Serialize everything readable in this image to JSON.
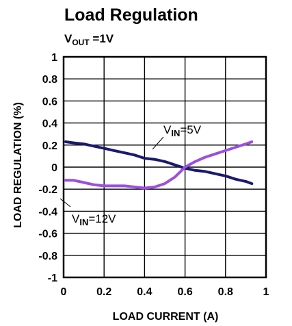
{
  "chart_data": {
    "type": "line",
    "title": "Load Regulation",
    "condition": {
      "prefix": "V",
      "sub": "OUT",
      "suffix": " =1V"
    },
    "xlabel": "LOAD CURRENT (A)",
    "ylabel": "LOAD REGULATION (%)",
    "xlim": [
      0,
      1
    ],
    "ylim": [
      -1,
      1
    ],
    "xticks": [
      0,
      0.2,
      0.4,
      0.6,
      0.8,
      1
    ],
    "xtick_labels": [
      "0",
      "0.2",
      "0.4",
      "0.6",
      "0.8",
      "1"
    ],
    "yticks": [
      1,
      0.8,
      0.6,
      0.4,
      0.2,
      0,
      -0.2,
      -0.4,
      -0.6,
      -0.8,
      -1
    ],
    "ytick_labels": [
      "1",
      "0.8",
      "0.6",
      "0.4",
      "0.2",
      "0",
      "-0.2",
      "-0.4",
      "-0.6",
      "-0.8",
      "-1"
    ],
    "grid": true,
    "series": [
      {
        "label_prefix": "V",
        "label_sub": "IN",
        "label_suffix": "=5V",
        "color": "#1a1a6e",
        "x": [
          0.01,
          0.05,
          0.1,
          0.15,
          0.2,
          0.25,
          0.3,
          0.35,
          0.4,
          0.45,
          0.5,
          0.55,
          0.6,
          0.65,
          0.7,
          0.75,
          0.8,
          0.85,
          0.9,
          0.93
        ],
        "y": [
          0.23,
          0.22,
          0.21,
          0.19,
          0.17,
          0.15,
          0.13,
          0.11,
          0.08,
          0.07,
          0.05,
          0.02,
          -0.01,
          -0.03,
          -0.04,
          -0.06,
          -0.08,
          -0.11,
          -0.13,
          -0.15
        ]
      },
      {
        "label_prefix": "V",
        "label_sub": "IN",
        "label_suffix": "=12V",
        "color": "#9b4fe0",
        "x": [
          0.01,
          0.05,
          0.1,
          0.15,
          0.2,
          0.25,
          0.3,
          0.35,
          0.4,
          0.45,
          0.5,
          0.55,
          0.6,
          0.65,
          0.7,
          0.75,
          0.8,
          0.85,
          0.9,
          0.93
        ],
        "y": [
          -0.12,
          -0.12,
          -0.14,
          -0.16,
          -0.17,
          -0.17,
          -0.17,
          -0.18,
          -0.19,
          -0.18,
          -0.15,
          -0.09,
          0.0,
          0.05,
          0.09,
          0.12,
          0.15,
          0.18,
          0.21,
          0.23
        ]
      }
    ]
  }
}
